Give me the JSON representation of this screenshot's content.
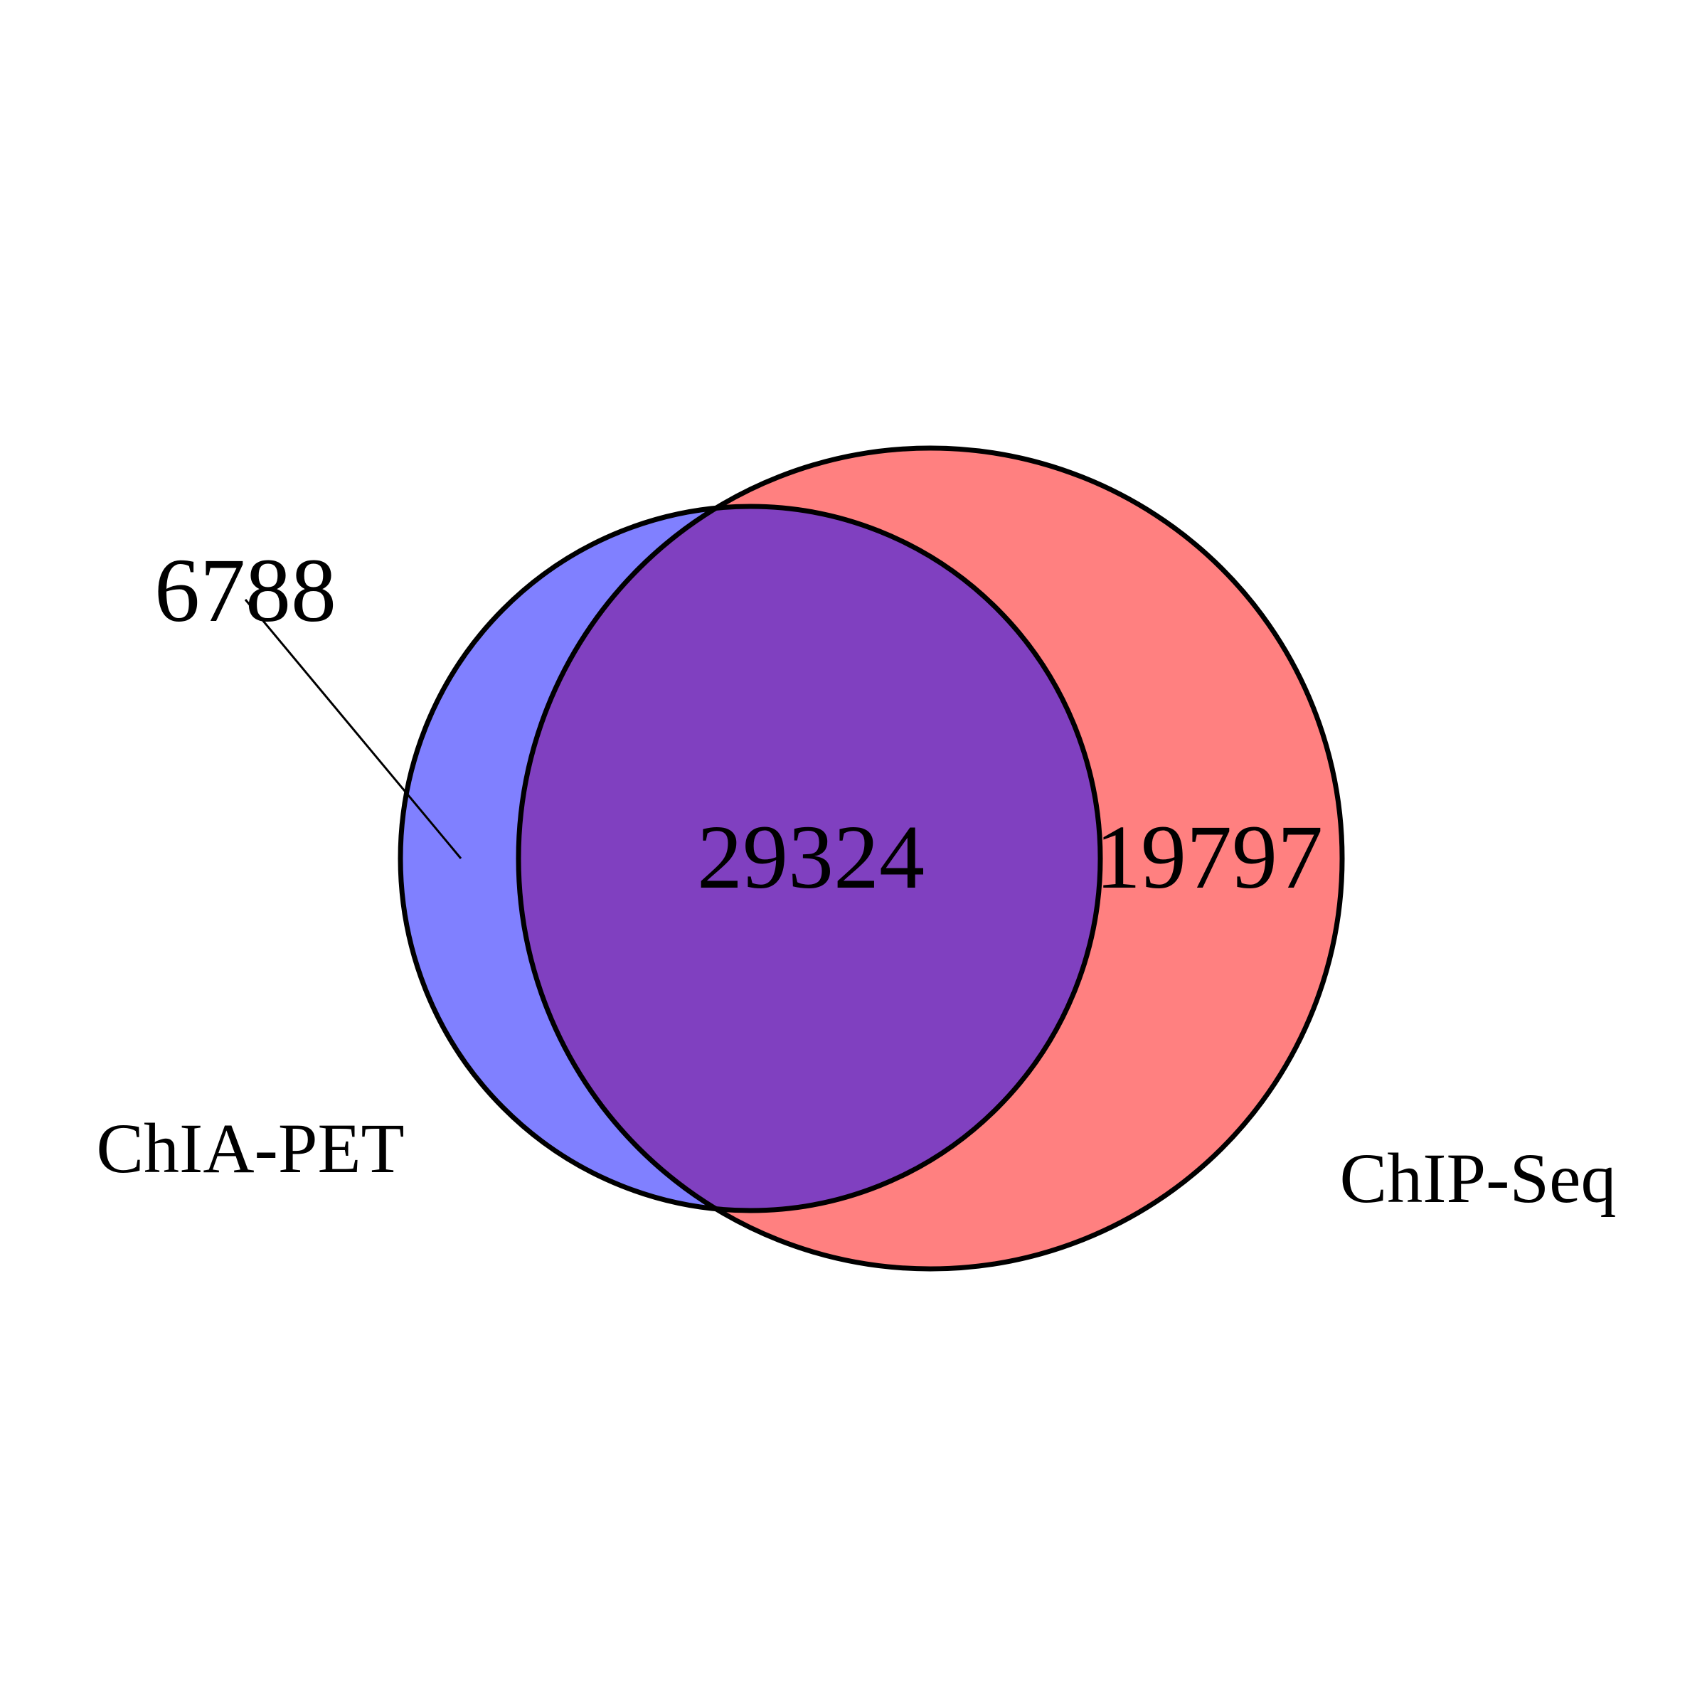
{
  "sets": {
    "left": {
      "name": "ChIA-PET",
      "color": "#8080ff"
    },
    "right": {
      "name": "ChIP-Seq",
      "color": "#ff8080"
    },
    "overlap": {
      "color": "#8040c0"
    }
  },
  "counts": {
    "left_only": "6788",
    "intersection": "29324",
    "right_only": "19797"
  },
  "stroke_color": "#000000"
}
